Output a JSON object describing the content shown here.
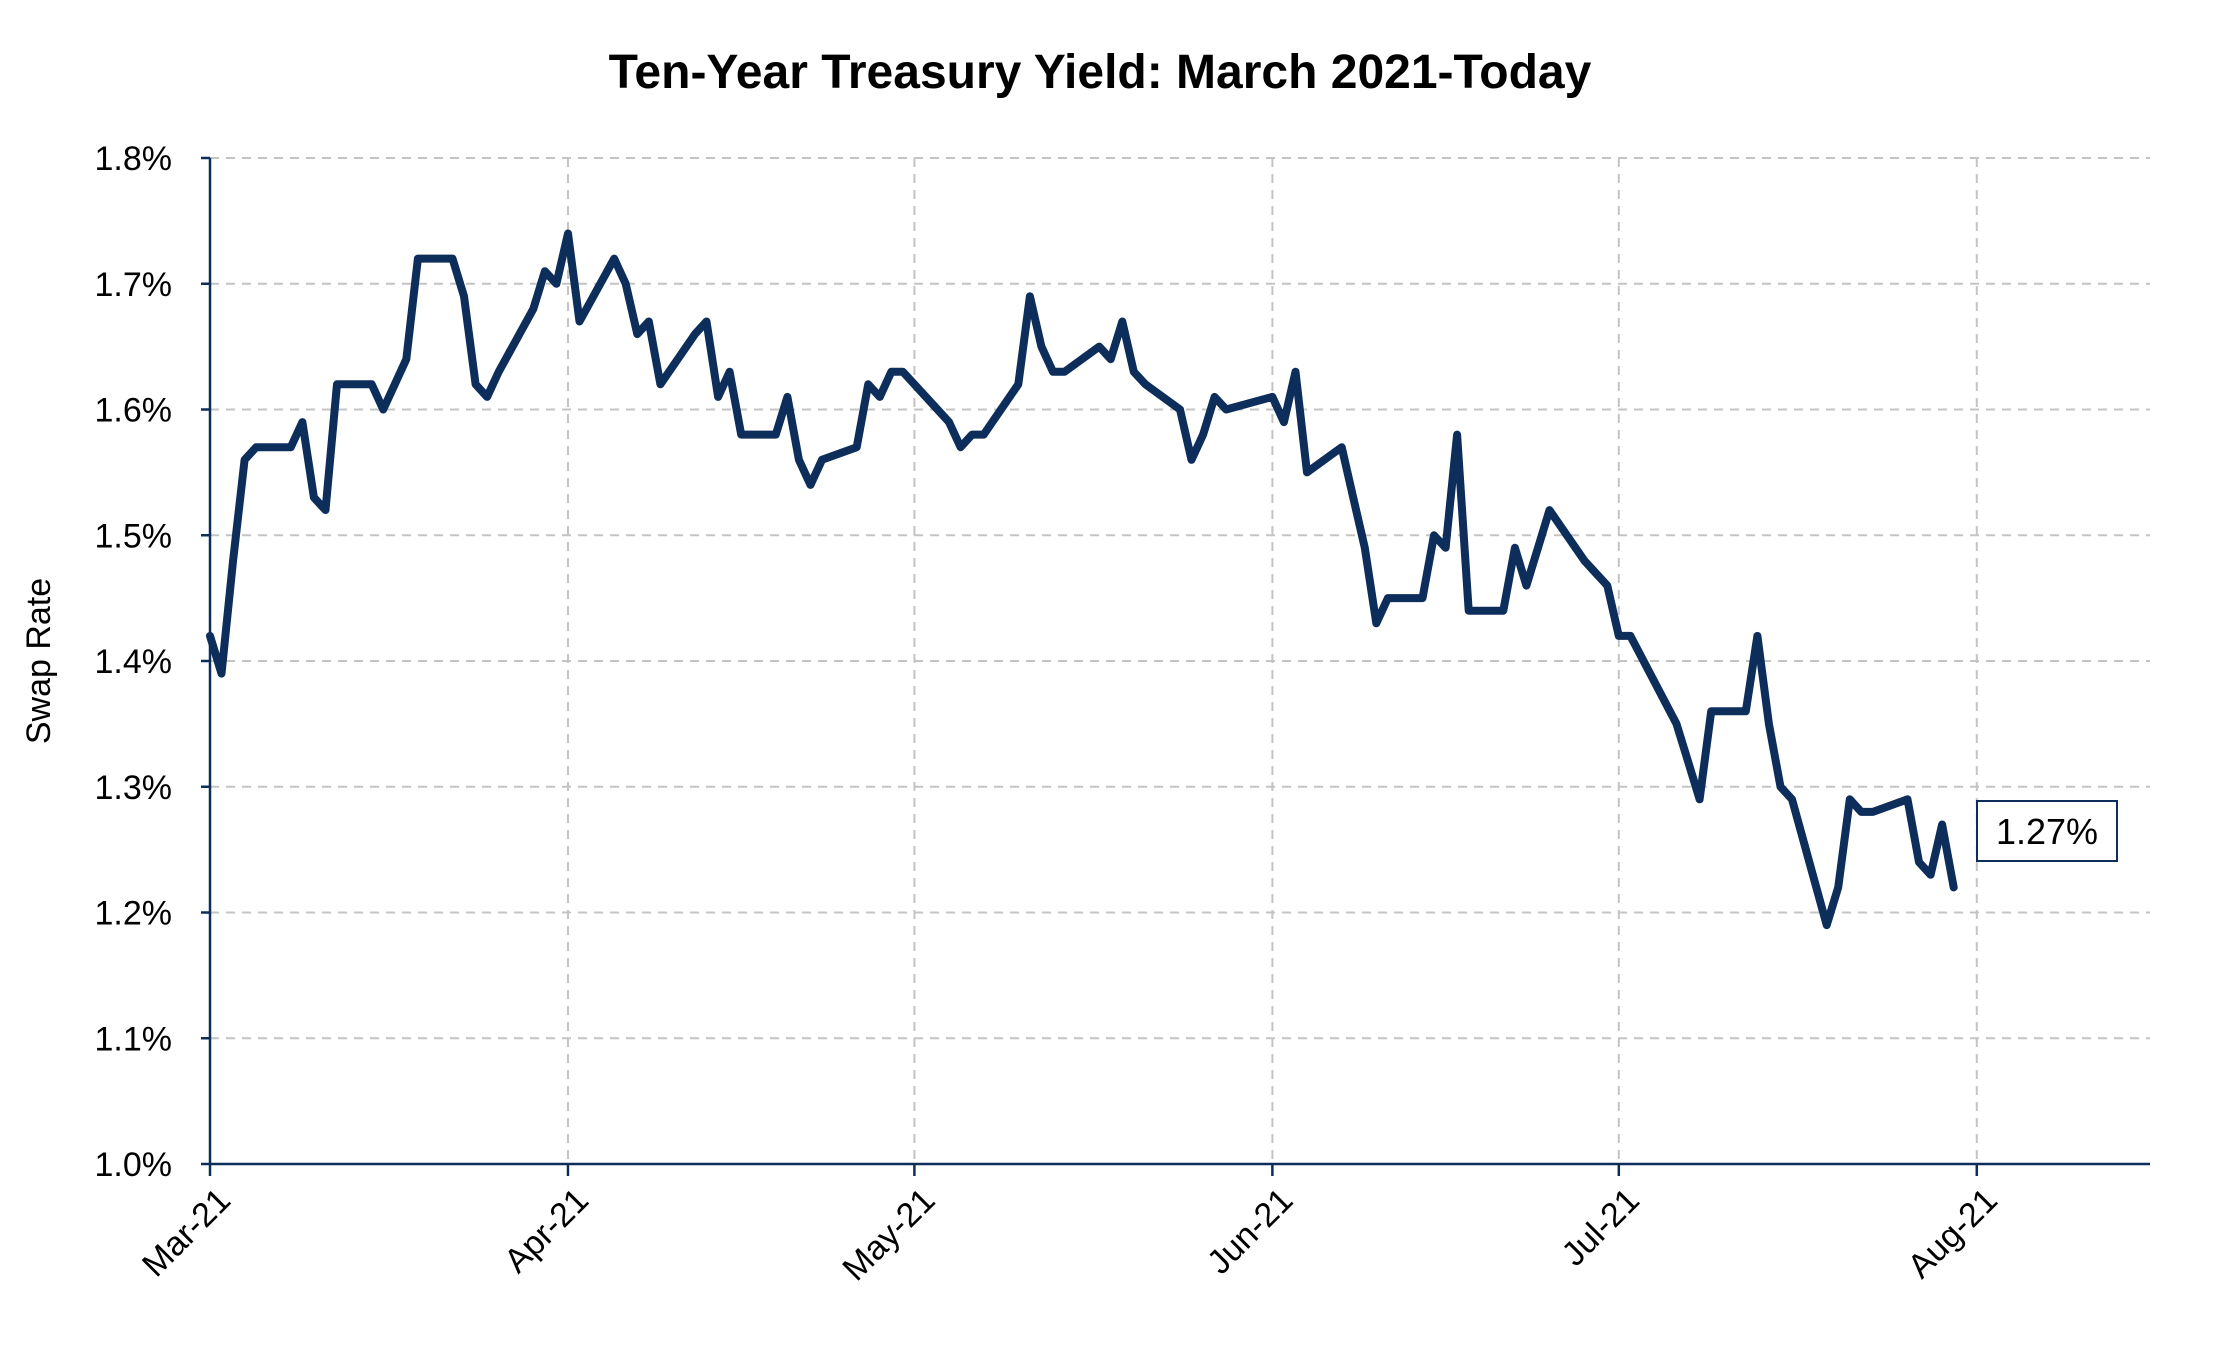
{
  "chart_data": {
    "type": "line",
    "title": "Ten-Year Treasury Yield: March 2021-Today",
    "ylabel": "Swap Rate",
    "xlabel": "",
    "ylim": [
      1.0,
      1.8
    ],
    "yticks": [
      1.0,
      1.1,
      1.2,
      1.3,
      1.4,
      1.5,
      1.6,
      1.7,
      1.8
    ],
    "ytick_labels": [
      "1.0%",
      "1.1%",
      "1.2%",
      "1.3%",
      "1.4%",
      "1.5%",
      "1.6%",
      "1.7%",
      "1.8%"
    ],
    "xlim": [
      "2021-03-01",
      "2021-08-16"
    ],
    "xticks": [
      "2021-03-01",
      "2021-04-01",
      "2021-05-01",
      "2021-06-01",
      "2021-07-01",
      "2021-08-01"
    ],
    "xtick_labels": [
      "Mar-21",
      "Apr-21",
      "May-21",
      "Jun-21",
      "Jul-21",
      "Aug-21"
    ],
    "grid": true,
    "line_color": "#0d2d5a",
    "series": [
      {
        "x": [
          "2021-03-01",
          "2021-03-02",
          "2021-03-03",
          "2021-03-04",
          "2021-03-05",
          "2021-03-08",
          "2021-03-09",
          "2021-03-10",
          "2021-03-11",
          "2021-03-12",
          "2021-03-15",
          "2021-03-16",
          "2021-03-17",
          "2021-03-18",
          "2021-03-19",
          "2021-03-22",
          "2021-03-23",
          "2021-03-24",
          "2021-03-25",
          "2021-03-26",
          "2021-03-29",
          "2021-03-30",
          "2021-03-31",
          "2021-04-01",
          "2021-04-02",
          "2021-04-05",
          "2021-04-06",
          "2021-04-07",
          "2021-04-08",
          "2021-04-09",
          "2021-04-12",
          "2021-04-13",
          "2021-04-14",
          "2021-04-15",
          "2021-04-16",
          "2021-04-19",
          "2021-04-20",
          "2021-04-21",
          "2021-04-22",
          "2021-04-23",
          "2021-04-26",
          "2021-04-27",
          "2021-04-28",
          "2021-04-29",
          "2021-04-30",
          "2021-05-03",
          "2021-05-04",
          "2021-05-05",
          "2021-05-06",
          "2021-05-07",
          "2021-05-10",
          "2021-05-11",
          "2021-05-12",
          "2021-05-13",
          "2021-05-14",
          "2021-05-17",
          "2021-05-18",
          "2021-05-19",
          "2021-05-20",
          "2021-05-21",
          "2021-05-24",
          "2021-05-25",
          "2021-05-26",
          "2021-05-27",
          "2021-05-28",
          "2021-06-01",
          "2021-06-02",
          "2021-06-03",
          "2021-06-04",
          "2021-06-07",
          "2021-06-08",
          "2021-06-09",
          "2021-06-10",
          "2021-06-11",
          "2021-06-14",
          "2021-06-15",
          "2021-06-16",
          "2021-06-17",
          "2021-06-18",
          "2021-06-21",
          "2021-06-22",
          "2021-06-23",
          "2021-06-24",
          "2021-06-25",
          "2021-06-28",
          "2021-06-29",
          "2021-06-30",
          "2021-07-01",
          "2021-07-02",
          "2021-07-06",
          "2021-07-07",
          "2021-07-08",
          "2021-07-09",
          "2021-07-12",
          "2021-07-13",
          "2021-07-14",
          "2021-07-15",
          "2021-07-16",
          "2021-07-19",
          "2021-07-20",
          "2021-07-21",
          "2021-07-22",
          "2021-07-23",
          "2021-07-26",
          "2021-07-27",
          "2021-07-28",
          "2021-07-29",
          "2021-07-30"
        ],
        "values": [
          1.42,
          1.39,
          1.48,
          1.56,
          1.57,
          1.57,
          1.59,
          1.53,
          1.52,
          1.62,
          1.62,
          1.6,
          1.62,
          1.64,
          1.72,
          1.72,
          1.69,
          1.62,
          1.61,
          1.63,
          1.68,
          1.71,
          1.7,
          1.74,
          1.67,
          1.72,
          1.7,
          1.66,
          1.67,
          1.62,
          1.66,
          1.67,
          1.61,
          1.63,
          1.58,
          1.58,
          1.61,
          1.56,
          1.54,
          1.56,
          1.57,
          1.62,
          1.61,
          1.63,
          1.63,
          1.6,
          1.59,
          1.57,
          1.58,
          1.58,
          1.62,
          1.69,
          1.65,
          1.63,
          1.63,
          1.65,
          1.64,
          1.67,
          1.63,
          1.62,
          1.6,
          1.56,
          1.58,
          1.61,
          1.6,
          1.61,
          1.59,
          1.63,
          1.55,
          1.57,
          1.53,
          1.49,
          1.43,
          1.45,
          1.45,
          1.5,
          1.49,
          1.58,
          1.44,
          1.44,
          1.49,
          1.46,
          1.49,
          1.52,
          1.48,
          1.47,
          1.46,
          1.42,
          1.42,
          1.35,
          1.32,
          1.29,
          1.36,
          1.36,
          1.42,
          1.35,
          1.3,
          1.29,
          1.19,
          1.22,
          1.29,
          1.28,
          1.28,
          1.29,
          1.24,
          1.23,
          1.27,
          1.22
        ]
      }
    ],
    "annotation": "1.27%"
  }
}
